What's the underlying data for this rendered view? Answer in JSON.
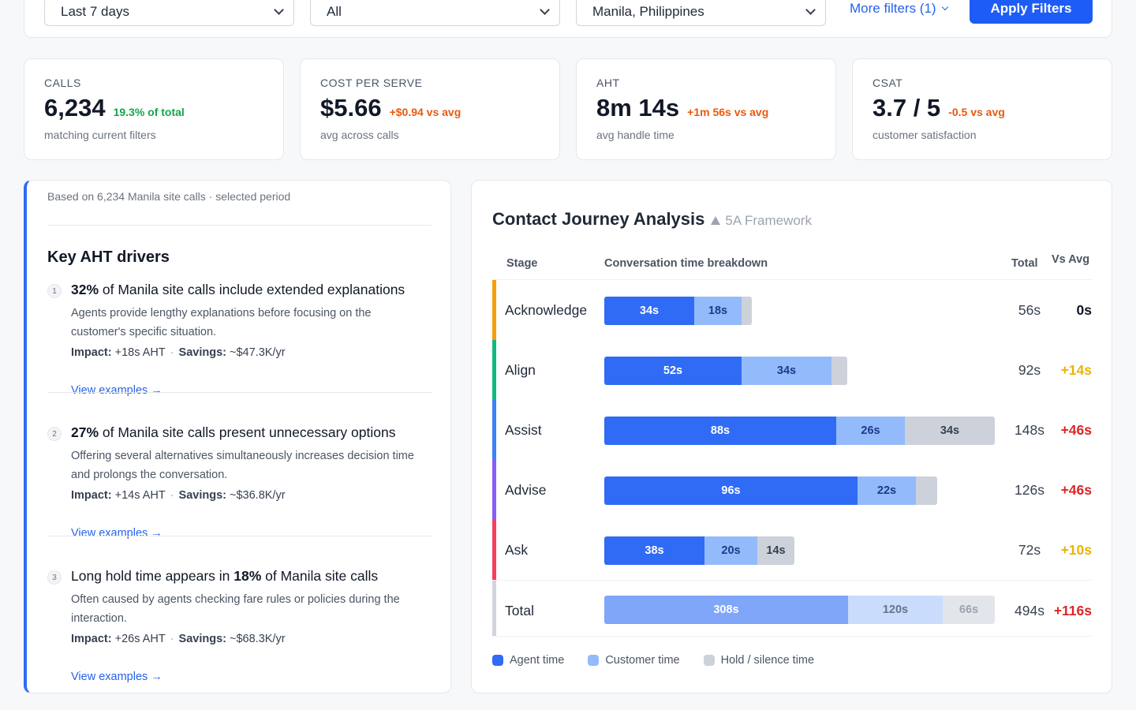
{
  "filters": {
    "period": "Last 7 days",
    "segment": "All",
    "site": "Manila, Philippines",
    "more_filters": "More filters (1)",
    "apply": "Apply Filters"
  },
  "kpis": [
    {
      "label": "CALLS",
      "value": "6,234",
      "delta": "19.3% of total",
      "delta_color": "#16a34a",
      "sub": "matching current filters"
    },
    {
      "label": "COST PER SERVE",
      "value": "$5.66",
      "delta": "+$0.94 vs avg",
      "delta_color": "#ea580c",
      "sub": "avg across calls"
    },
    {
      "label": "AHT",
      "value": "8m 14s",
      "delta": "+1m 56s vs avg",
      "delta_color": "#ea580c",
      "sub": "avg handle time"
    },
    {
      "label": "CSAT",
      "value": "3.7 / 5",
      "delta": "-0.5 vs avg",
      "delta_color": "#ea580c",
      "sub": "customer satisfaction"
    }
  ],
  "drivers": {
    "cut_text": "Based on 6,234 Manila site calls · selected period",
    "title": "Key AHT drivers",
    "items": [
      {
        "num": "1",
        "head_bold": "32%",
        "head_rest": " of Manila site calls include extended explanations",
        "desc": "Agents provide lengthy explanations before focusing on the customer's specific situation.",
        "impact_label": "Impact:",
        "impact": "+18s AHT",
        "savings_label": "Savings:",
        "savings": "~$47.3K/yr",
        "link": "View examples →"
      },
      {
        "num": "2",
        "head_bold": "27%",
        "head_rest": " of Manila site calls present unnecessary options",
        "desc": "Offering several alternatives simultaneously increases decision time and prolongs the conversation.",
        "impact_label": "Impact:",
        "impact": "+14s AHT",
        "savings_label": "Savings:",
        "savings": "~$36.8K/yr",
        "link": "View examples →"
      },
      {
        "num": "3",
        "head_pre": "Long hold time appears in ",
        "head_bold": "18%",
        "head_rest": " of Manila site calls",
        "desc": "Often caused by agents checking fare rules or policies during the interaction.",
        "impact_label": "Impact:",
        "impact": "+26s AHT",
        "savings_label": "Savings:",
        "savings": "~$68.3K/yr",
        "link": "View examples →"
      }
    ]
  },
  "journey": {
    "title": "Contact Journey Analysis",
    "subtitle": "5A Framework",
    "columns": {
      "stage": "Stage",
      "breakdown": "Conversation time breakdown",
      "total": "Total",
      "vs_avg": "Vs Avg"
    },
    "stages": [
      {
        "name": "Acknowledge",
        "color": "#f59e0b",
        "agent": 34,
        "customer": 18,
        "hold": 4,
        "agent_label": "34s",
        "customer_label": "18s",
        "hold_label": "",
        "total": "56s",
        "vs_avg": "0s",
        "vs_color": "#111827"
      },
      {
        "name": "Align",
        "color": "#10b981",
        "agent": 52,
        "customer": 34,
        "hold": 6,
        "agent_label": "52s",
        "customer_label": "34s",
        "hold_label": "",
        "total": "92s",
        "vs_avg": "+14s",
        "vs_color": "#eab308"
      },
      {
        "name": "Assist",
        "color": "#3b82f6",
        "agent": 88,
        "customer": 26,
        "hold": 34,
        "agent_label": "88s",
        "customer_label": "26s",
        "hold_label": "34s",
        "total": "148s",
        "vs_avg": "+46s",
        "vs_color": "#dc2626"
      },
      {
        "name": "Advise",
        "color": "#8b5cf6",
        "agent": 96,
        "customer": 22,
        "hold": 8,
        "agent_label": "96s",
        "customer_label": "22s",
        "hold_label": "",
        "total": "126s",
        "vs_avg": "+46s",
        "vs_color": "#dc2626"
      },
      {
        "name": "Ask",
        "color": "#f43f5e",
        "agent": 38,
        "customer": 20,
        "hold": 14,
        "agent_label": "38s",
        "customer_label": "20s",
        "hold_label": "14s",
        "total": "72s",
        "vs_avg": "+10s",
        "vs_color": "#eab308"
      }
    ],
    "total_row": {
      "name": "Total",
      "color": "#d1d5db",
      "agent": 308,
      "customer": 120,
      "hold": 66,
      "agent_label": "308s",
      "customer_label": "120s",
      "hold_label": "66s",
      "total": "494s",
      "vs_avg": "+116s",
      "vs_color": "#dc2626"
    },
    "legend": [
      {
        "label": "Agent time",
        "color": "#2f6bf5"
      },
      {
        "label": "Customer time",
        "color": "#93bbfb"
      },
      {
        "label": "Hold / silence time",
        "color": "#cdd1d9"
      }
    ]
  }
}
